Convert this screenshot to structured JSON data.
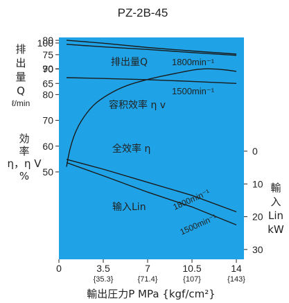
{
  "chart_data": {
    "type": "line",
    "title": "PZ-2B-45",
    "xlabel": "輸出圧力P  MPa {kgf/cm²}",
    "x_ticks": [
      {
        "value": 0,
        "label": "0",
        "sub": ""
      },
      {
        "value": 3.5,
        "label": "3.5",
        "sub": "{35.3}"
      },
      {
        "value": 7,
        "label": "7",
        "sub": "{71.4}"
      },
      {
        "value": 10.5,
        "label": "10.5",
        "sub": "{107}"
      },
      {
        "value": 14,
        "label": "14",
        "sub": "{143}"
      }
    ],
    "xlim": [
      0,
      14.6
    ],
    "left_axis": {
      "upper": {
        "label_lines": [
          "排",
          "出",
          "量",
          "Q"
        ],
        "unit": "ℓ/min",
        "ylim": [
          60,
          81
        ],
        "ticks": [
          65,
          70,
          75,
          80
        ]
      },
      "lower": {
        "label_lines": [
          "効",
          "率",
          "η，η V",
          "%"
        ],
        "unit": "",
        "ylim": [
          36,
          100
        ],
        "ticks": [
          50,
          60,
          70,
          80,
          90,
          100
        ]
      }
    },
    "right_axis": {
      "label_lines": [
        "輸",
        "入",
        "Lin",
        "kW"
      ],
      "ylim": [
        0,
        33
      ],
      "ticks": [
        0,
        10,
        20,
        30
      ]
    },
    "series": [
      {
        "name": "排出量Q 1800min⁻¹",
        "axis": "discharge",
        "x": [
          0.6,
          3.5,
          7,
          10.5,
          14
        ],
        "y": [
          80,
          79,
          77.5,
          76.3,
          75.2
        ]
      },
      {
        "name": "1500min⁻¹",
        "axis": "discharge",
        "x": [
          0.6,
          3.5,
          7,
          10.5,
          14
        ],
        "y": [
          67,
          66.7,
          66.3,
          65.7,
          65
        ]
      },
      {
        "name": "容积效率ηv",
        "axis": "efficiency",
        "x": [
          0.6,
          3.5,
          7,
          10.5,
          14
        ],
        "y": [
          99.5,
          98.5,
          97.5,
          96.3,
          95.2
        ]
      },
      {
        "name": "全效率η",
        "axis": "efficiency",
        "x": [
          0.6,
          0.9,
          1.5,
          2.5,
          3.5,
          5,
          7,
          9,
          11,
          12.5,
          14
        ],
        "y": [
          52,
          60,
          68,
          75,
          79,
          83,
          86,
          88,
          90,
          90,
          89
        ]
      },
      {
        "name": "输入Lin 1800min⁻¹",
        "axis": "input",
        "x": [
          0.6,
          3.5,
          7,
          10.5,
          14
        ],
        "y": [
          3.5,
          7.5,
          12.5,
          17,
          22.5
        ]
      },
      {
        "name": "1500min⁻¹",
        "axis": "input",
        "x": [
          0.6,
          3.5,
          7,
          10.5,
          14
        ],
        "y": [
          2.5,
          5.5,
          9.5,
          13.5,
          18.5
        ]
      }
    ],
    "annotations": {
      "discharge_main": "排出量Q",
      "discharge_1800": "1800min⁻¹",
      "discharge_1500": "1500min⁻¹",
      "vol_eff": "容积效率 η v",
      "total_eff": "全效率 η",
      "input_main": "输入Lin",
      "input_1800": "1800min⁻¹",
      "input_1500": "1500min⁻¹"
    },
    "grid": false,
    "legend": "none",
    "colors": {
      "plot_bg": "#1fa3e6",
      "line": "#1a1a1a",
      "text": "#222222"
    }
  }
}
